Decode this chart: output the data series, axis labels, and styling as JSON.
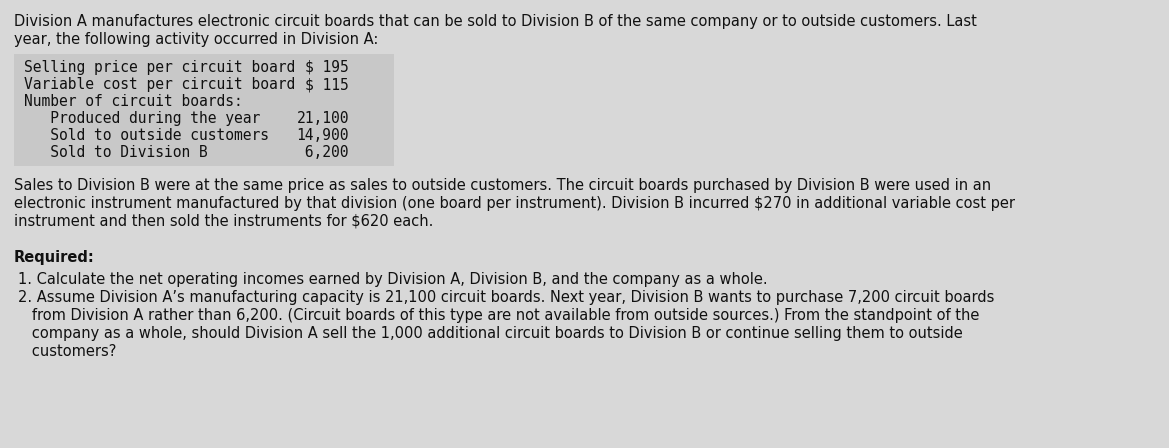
{
  "background_color": "#d8d8d8",
  "table_bg_color": "#c8c8c8",
  "intro_text_line1": "Division A manufactures electronic circuit boards that can be sold to Division B of the same company or to outside customers. Last",
  "intro_text_line2": "year, the following activity occurred in Division A:",
  "table_rows": [
    {
      "label": "Selling price per circuit board",
      "value": "$ 195"
    },
    {
      "label": "Variable cost per circuit board",
      "value": "$ 115"
    },
    {
      "label": "Number of circuit boards:",
      "value": ""
    },
    {
      "label": "   Produced during the year",
      "value": "21,100"
    },
    {
      "label": "   Sold to outside customers",
      "value": "14,900"
    },
    {
      "label": "   Sold to Division B",
      "value": " 6,200"
    }
  ],
  "middle_lines": [
    "Sales to Division B were at the same price as sales to outside customers. The circuit boards purchased by Division B were used in an",
    "electronic instrument manufactured by that division (one board per instrument). Division B incurred $270 in additional variable cost per",
    "instrument and then sold the instruments for $620 each."
  ],
  "required_label": "Required:",
  "req1": "1. Calculate the net operating incomes earned by Division A, Division B, and the company as a whole.",
  "req2_lines": [
    "2. Assume Division A’s manufacturing capacity is 21,100 circuit boards. Next year, Division B wants to purchase 7,200 circuit boards",
    "   from Division A rather than 6,200. (Circuit boards of this type are not available from outside sources.) From the standpoint of the",
    "   company as a whole, should Division A sell the 1,000 additional circuit boards to Division B or continue selling them to outside",
    "   customers?"
  ],
  "text_color": "#111111",
  "mono_fs": 10.5,
  "body_fs": 10.5
}
